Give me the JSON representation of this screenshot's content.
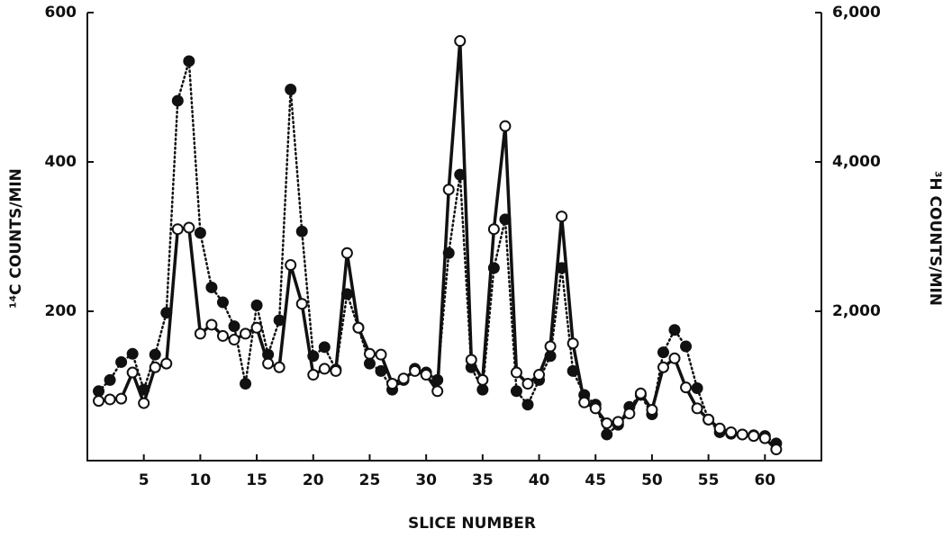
{
  "chart_data": {
    "type": "line",
    "xlabel": "SLICE NUMBER",
    "ylabel": "¹⁴C COUNTS/MIN",
    "y2label": "³H COUNTS/MIN",
    "x": [
      1,
      2,
      3,
      4,
      5,
      6,
      7,
      8,
      9,
      10,
      11,
      12,
      13,
      14,
      15,
      16,
      17,
      18,
      19,
      20,
      21,
      22,
      23,
      24,
      25,
      26,
      27,
      28,
      29,
      30,
      31,
      32,
      33,
      34,
      35,
      36,
      37,
      38,
      39,
      40,
      41,
      42,
      43,
      44,
      45,
      46,
      47,
      48,
      49,
      50,
      51,
      52,
      53,
      54,
      55,
      56,
      57,
      58,
      59,
      60,
      61
    ],
    "xlim": [
      0,
      65
    ],
    "xticks": [
      5,
      10,
      15,
      20,
      25,
      30,
      35,
      40,
      45,
      50,
      55,
      60
    ],
    "ylim": [
      0,
      600
    ],
    "yticks": [
      200,
      400,
      600
    ],
    "y2lim": [
      0,
      6000
    ],
    "y2ticks": [
      {
        "value": 2000,
        "label": "2,000"
      },
      {
        "value": 4000,
        "label": "4,000"
      },
      {
        "value": 6000,
        "label": "6,000"
      }
    ],
    "series": [
      {
        "color": "#111111",
        "marker": "filled",
        "line_style": "dotted",
        "values": [
          93,
          108,
          132,
          143,
          95,
          142,
          198,
          482,
          535,
          305,
          232,
          212,
          180,
          103,
          208,
          142,
          188,
          497,
          307,
          140,
          152,
          122,
          223,
          178,
          130,
          120,
          95,
          108,
          123,
          118,
          108,
          278,
          383,
          125,
          95,
          258,
          323,
          93,
          75,
          108,
          140,
          258,
          120,
          88,
          75,
          35,
          48,
          72,
          88,
          62,
          145,
          175,
          153,
          97,
          55,
          38,
          36,
          35,
          34,
          33,
          23
        ]
      },
      {
        "color": "#111111",
        "marker": "open",
        "line_style": "solid",
        "axis": "y2",
        "values": [
          800,
          820,
          830,
          1180,
          770,
          1250,
          1300,
          3100,
          3120,
          1700,
          1820,
          1670,
          1620,
          1700,
          1780,
          1300,
          1250,
          2620,
          2100,
          1150,
          1230,
          1200,
          2780,
          1780,
          1430,
          1420,
          1030,
          1100,
          1200,
          1150,
          930,
          3630,
          5620,
          1350,
          1080,
          3100,
          4480,
          1180,
          1030,
          1150,
          1530,
          3270,
          1570,
          780,
          700,
          500,
          520,
          630,
          900,
          680,
          1250,
          1370,
          980,
          700,
          550,
          430,
          380,
          350,
          330,
          300,
          150
        ]
      }
    ]
  }
}
